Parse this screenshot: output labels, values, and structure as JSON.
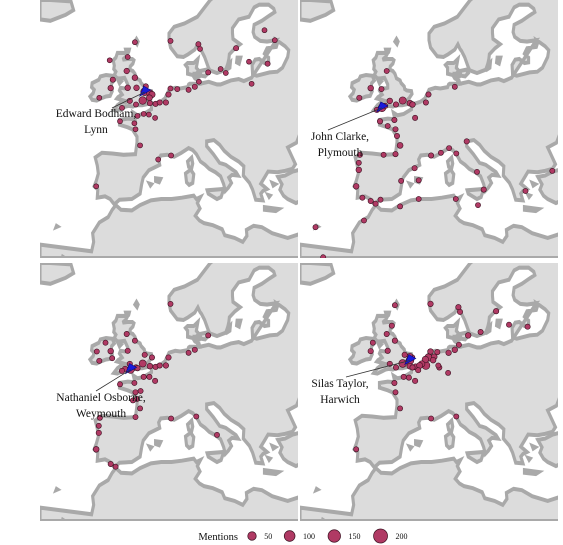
{
  "colors": {
    "sea": "#ffffff",
    "land": "#dcdcdc",
    "coast": "#a9a9a9",
    "marker_fill": "#b03a64",
    "marker_stroke": "#3a1020",
    "home": "#1a1adb"
  },
  "panels": [
    {
      "id": "bodham",
      "label_lines": [
        "Edward Bodham,",
        "Lynn"
      ],
      "home": [
        0.3,
        52.75
      ],
      "points": [
        [
          0.3,
          52.8,
          40
        ],
        [
          -0.1,
          51.5,
          35
        ],
        [
          1.3,
          52.6,
          22
        ],
        [
          1.7,
          52.4,
          18
        ],
        [
          1.2,
          51.9,
          15
        ],
        [
          -1.3,
          53.4,
          12
        ],
        [
          -1.6,
          54.9,
          12
        ],
        [
          -3.0,
          53.4,
          12
        ],
        [
          0.5,
          53.6,
          9
        ],
        [
          -2.6,
          51.45,
          10
        ],
        [
          -4.1,
          50.4,
          8
        ],
        [
          -1.4,
          50.9,
          8
        ],
        [
          1.3,
          51.1,
          9
        ],
        [
          2.4,
          51.0,
          9
        ],
        [
          3.2,
          51.2,
          9
        ],
        [
          4.4,
          51.2,
          10
        ],
        [
          4.9,
          52.4,
          10
        ],
        [
          5.3,
          53.3,
          8
        ],
        [
          6.6,
          53.2,
          8
        ],
        [
          8.8,
          53.1,
          8
        ],
        [
          10.0,
          53.55,
          9
        ],
        [
          10.8,
          54.3,
          7
        ],
        [
          12.6,
          55.7,
          8
        ],
        [
          15.0,
          56.2,
          7
        ],
        [
          16.0,
          55.6,
          7
        ],
        [
          18.0,
          59.3,
          9
        ],
        [
          11.0,
          59.2,
          7
        ],
        [
          10.7,
          59.9,
          8
        ],
        [
          5.3,
          60.4,
          8
        ],
        [
          -1.6,
          60.2,
          7
        ],
        [
          -3.2,
          55.9,
          11
        ],
        [
          -5.9,
          54.6,
          9
        ],
        [
          -6.3,
          53.35,
          11
        ],
        [
          -3.0,
          58.0,
          7
        ],
        [
          -6.5,
          57.5,
          7
        ],
        [
          -8.5,
          51.9,
          7
        ],
        [
          -1.1,
          49.2,
          7
        ],
        [
          0.1,
          49.5,
          7
        ],
        [
          1.1,
          49.4,
          7
        ],
        [
          2.3,
          48.9,
          7
        ],
        [
          -4.5,
          48.4,
          7
        ],
        [
          -1.7,
          48.1,
          7
        ],
        [
          2.9,
          42.7,
          7
        ],
        [
          5.4,
          43.3,
          8
        ],
        [
          -9.1,
          38.7,
          7
        ],
        [
          -0.6,
          44.8,
          7
        ],
        [
          -1.5,
          47.2,
          7
        ],
        [
          20.5,
          57.3,
          7
        ],
        [
          24.1,
          57.0,
          8
        ],
        [
          21.0,
          54.0,
          7
        ],
        [
          23.5,
          62.0,
          7
        ],
        [
          25.5,
          60.5,
          7
        ]
      ]
    },
    {
      "id": "clarke",
      "label_lines": [
        "John Clarke,",
        "Plymouth"
      ],
      "home": [
        -4.15,
        50.4
      ],
      "points": [
        [
          -4.1,
          50.4,
          35
        ],
        [
          -0.1,
          51.5,
          30
        ],
        [
          1.3,
          51.1,
          14
        ],
        [
          1.8,
          50.9,
          12
        ],
        [
          -2.6,
          51.45,
          12
        ],
        [
          -3.5,
          50.7,
          10
        ],
        [
          -1.4,
          50.9,
          10
        ],
        [
          -5.1,
          50.1,
          10
        ],
        [
          -6.3,
          53.35,
          12
        ],
        [
          -4.2,
          53.2,
          8
        ],
        [
          -3.2,
          55.9,
          8
        ],
        [
          -8.5,
          51.9,
          9
        ],
        [
          2.3,
          48.9,
          9
        ],
        [
          -1.7,
          48.6,
          9
        ],
        [
          -4.5,
          48.4,
          10
        ],
        [
          -3.0,
          47.7,
          8
        ],
        [
          -1.5,
          47.2,
          9
        ],
        [
          -1.2,
          46.2,
          9
        ],
        [
          -0.6,
          44.8,
          14
        ],
        [
          -1.5,
          43.5,
          9
        ],
        [
          -3.8,
          43.4,
          8
        ],
        [
          -8.4,
          43.4,
          9
        ],
        [
          -8.6,
          42.2,
          8
        ],
        [
          -8.6,
          41.15,
          12
        ],
        [
          -9.1,
          38.7,
          12
        ],
        [
          -7.9,
          37.0,
          8
        ],
        [
          -6.3,
          36.5,
          9
        ],
        [
          -5.35,
          36.1,
          9
        ],
        [
          -4.4,
          36.7,
          8
        ],
        [
          -0.4,
          39.5,
          8
        ],
        [
          2.2,
          41.4,
          9
        ],
        [
          3.0,
          39.6,
          8
        ],
        [
          5.4,
          43.3,
          9
        ],
        [
          7.3,
          43.7,
          8
        ],
        [
          8.9,
          44.4,
          8
        ],
        [
          10.3,
          43.6,
          8
        ],
        [
          12.3,
          45.4,
          9
        ],
        [
          14.3,
          40.85,
          8
        ],
        [
          15.6,
          38.2,
          9
        ],
        [
          14.5,
          35.9,
          8
        ],
        [
          10.2,
          36.8,
          8
        ],
        [
          3.0,
          36.8,
          8
        ],
        [
          -0.6,
          35.7,
          8
        ],
        [
          -7.6,
          33.6,
          8
        ],
        [
          -15.5,
          28.1,
          8
        ],
        [
          -17.0,
          32.6,
          8
        ],
        [
          23.7,
          38.0,
          8
        ],
        [
          28.9,
          41.0,
          8
        ],
        [
          4.9,
          52.4,
          9
        ],
        [
          4.4,
          51.2,
          9
        ],
        [
          10.0,
          53.55,
          8
        ]
      ]
    },
    {
      "id": "osborne",
      "label_lines": [
        "Nathaniel Osborne,",
        "Weymouth"
      ],
      "home": [
        -2.45,
        50.6
      ],
      "points": [
        [
          -2.45,
          50.6,
          35
        ],
        [
          -0.1,
          51.5,
          28
        ],
        [
          1.3,
          51.1,
          12
        ],
        [
          -1.4,
          50.9,
          12
        ],
        [
          -1.1,
          50.8,
          10
        ],
        [
          -3.5,
          50.7,
          10
        ],
        [
          -4.1,
          50.4,
          10
        ],
        [
          -2.6,
          51.45,
          10
        ],
        [
          -3.0,
          53.4,
          9
        ],
        [
          -1.6,
          54.9,
          8
        ],
        [
          -3.2,
          55.9,
          9
        ],
        [
          -6.3,
          53.35,
          12
        ],
        [
          -8.5,
          51.9,
          9
        ],
        [
          -9.0,
          53.3,
          8
        ],
        [
          -7.3,
          54.6,
          8
        ],
        [
          -6.0,
          52.3,
          8
        ],
        [
          2.3,
          48.9,
          9
        ],
        [
          -1.7,
          48.6,
          8
        ],
        [
          -4.5,
          48.4,
          8
        ],
        [
          -1.5,
          47.2,
          9
        ],
        [
          -1.2,
          46.2,
          8
        ],
        [
          -0.6,
          44.8,
          8
        ],
        [
          -1.5,
          43.5,
          8
        ],
        [
          -8.4,
          43.4,
          8
        ],
        [
          -8.6,
          42.2,
          8
        ],
        [
          -8.6,
          41.15,
          10
        ],
        [
          -9.1,
          38.7,
          13
        ],
        [
          -6.3,
          36.5,
          9
        ],
        [
          -5.35,
          36.1,
          8
        ],
        [
          1.2,
          49.5,
          9
        ],
        [
          0.1,
          49.5,
          9
        ],
        [
          2.4,
          51.0,
          10
        ],
        [
          3.2,
          51.2,
          9
        ],
        [
          4.4,
          51.2,
          11
        ],
        [
          4.9,
          52.4,
          10
        ],
        [
          10.0,
          53.55,
          9
        ],
        [
          8.8,
          53.1,
          8
        ],
        [
          5.4,
          43.3,
          8
        ],
        [
          10.3,
          43.6,
          8
        ],
        [
          14.3,
          40.85,
          8
        ],
        [
          12.6,
          55.7,
          8
        ],
        [
          5.3,
          60.4,
          8
        ],
        [
          0.3,
          52.8,
          9
        ],
        [
          1.7,
          52.4,
          9
        ],
        [
          -0.5,
          47.4,
          8
        ],
        [
          -2.0,
          46.0,
          8
        ]
      ]
    },
    {
      "id": "taylor",
      "label_lines": [
        "Silas Taylor,",
        "Harwich"
      ],
      "home": [
        1.28,
        51.95
      ],
      "points": [
        [
          1.3,
          51.95,
          40
        ],
        [
          -0.1,
          51.5,
          38
        ],
        [
          4.4,
          51.2,
          40
        ],
        [
          4.9,
          52.4,
          32
        ],
        [
          4.3,
          52.1,
          22
        ],
        [
          3.6,
          51.45,
          18
        ],
        [
          2.4,
          51.0,
          16
        ],
        [
          3.2,
          51.2,
          16
        ],
        [
          6.0,
          52.5,
          14
        ],
        [
          5.3,
          53.3,
          12
        ],
        [
          5.8,
          52.0,
          12
        ],
        [
          1.3,
          51.1,
          14
        ],
        [
          1.7,
          52.4,
          12
        ],
        [
          1.3,
          52.6,
          12
        ],
        [
          0.3,
          52.8,
          10
        ],
        [
          1.8,
          50.9,
          9
        ],
        [
          -1.4,
          50.9,
          10
        ],
        [
          -2.6,
          51.45,
          10
        ],
        [
          -3.0,
          53.4,
          10
        ],
        [
          -1.6,
          54.9,
          10
        ],
        [
          -3.2,
          55.9,
          9
        ],
        [
          -2.2,
          57.15,
          9
        ],
        [
          -6.3,
          53.35,
          10
        ],
        [
          -5.9,
          54.6,
          8
        ],
        [
          2.3,
          48.9,
          10
        ],
        [
          1.1,
          49.4,
          9
        ],
        [
          0.1,
          49.5,
          9
        ],
        [
          -1.7,
          48.6,
          9
        ],
        [
          -1.5,
          47.2,
          8
        ],
        [
          -0.6,
          44.8,
          8
        ],
        [
          10.0,
          53.55,
          12
        ],
        [
          8.8,
          53.1,
          11
        ],
        [
          6.6,
          53.2,
          9
        ],
        [
          10.8,
          54.3,
          9
        ],
        [
          12.6,
          55.7,
          12
        ],
        [
          15.0,
          56.2,
          9
        ],
        [
          18.0,
          59.3,
          10
        ],
        [
          11.0,
          59.2,
          9
        ],
        [
          10.7,
          59.9,
          10
        ],
        [
          5.3,
          60.4,
          11
        ],
        [
          -1.6,
          60.2,
          8
        ],
        [
          20.5,
          57.3,
          8
        ],
        [
          24.1,
          57.0,
          9
        ],
        [
          7.0,
          50.9,
          9
        ],
        [
          6.8,
          51.2,
          8
        ],
        [
          8.7,
          50.1,
          8
        ],
        [
          2.9,
          50.5,
          9
        ],
        [
          -9.1,
          38.7,
          8
        ],
        [
          10.3,
          43.6,
          8
        ],
        [
          5.4,
          43.3,
          8
        ]
      ]
    }
  ],
  "legend": {
    "title": "Mentions",
    "items": [
      {
        "label": "50",
        "value": 50
      },
      {
        "label": "100",
        "value": 100
      },
      {
        "label": "150",
        "value": 150
      },
      {
        "label": "200",
        "value": 200
      }
    ]
  }
}
